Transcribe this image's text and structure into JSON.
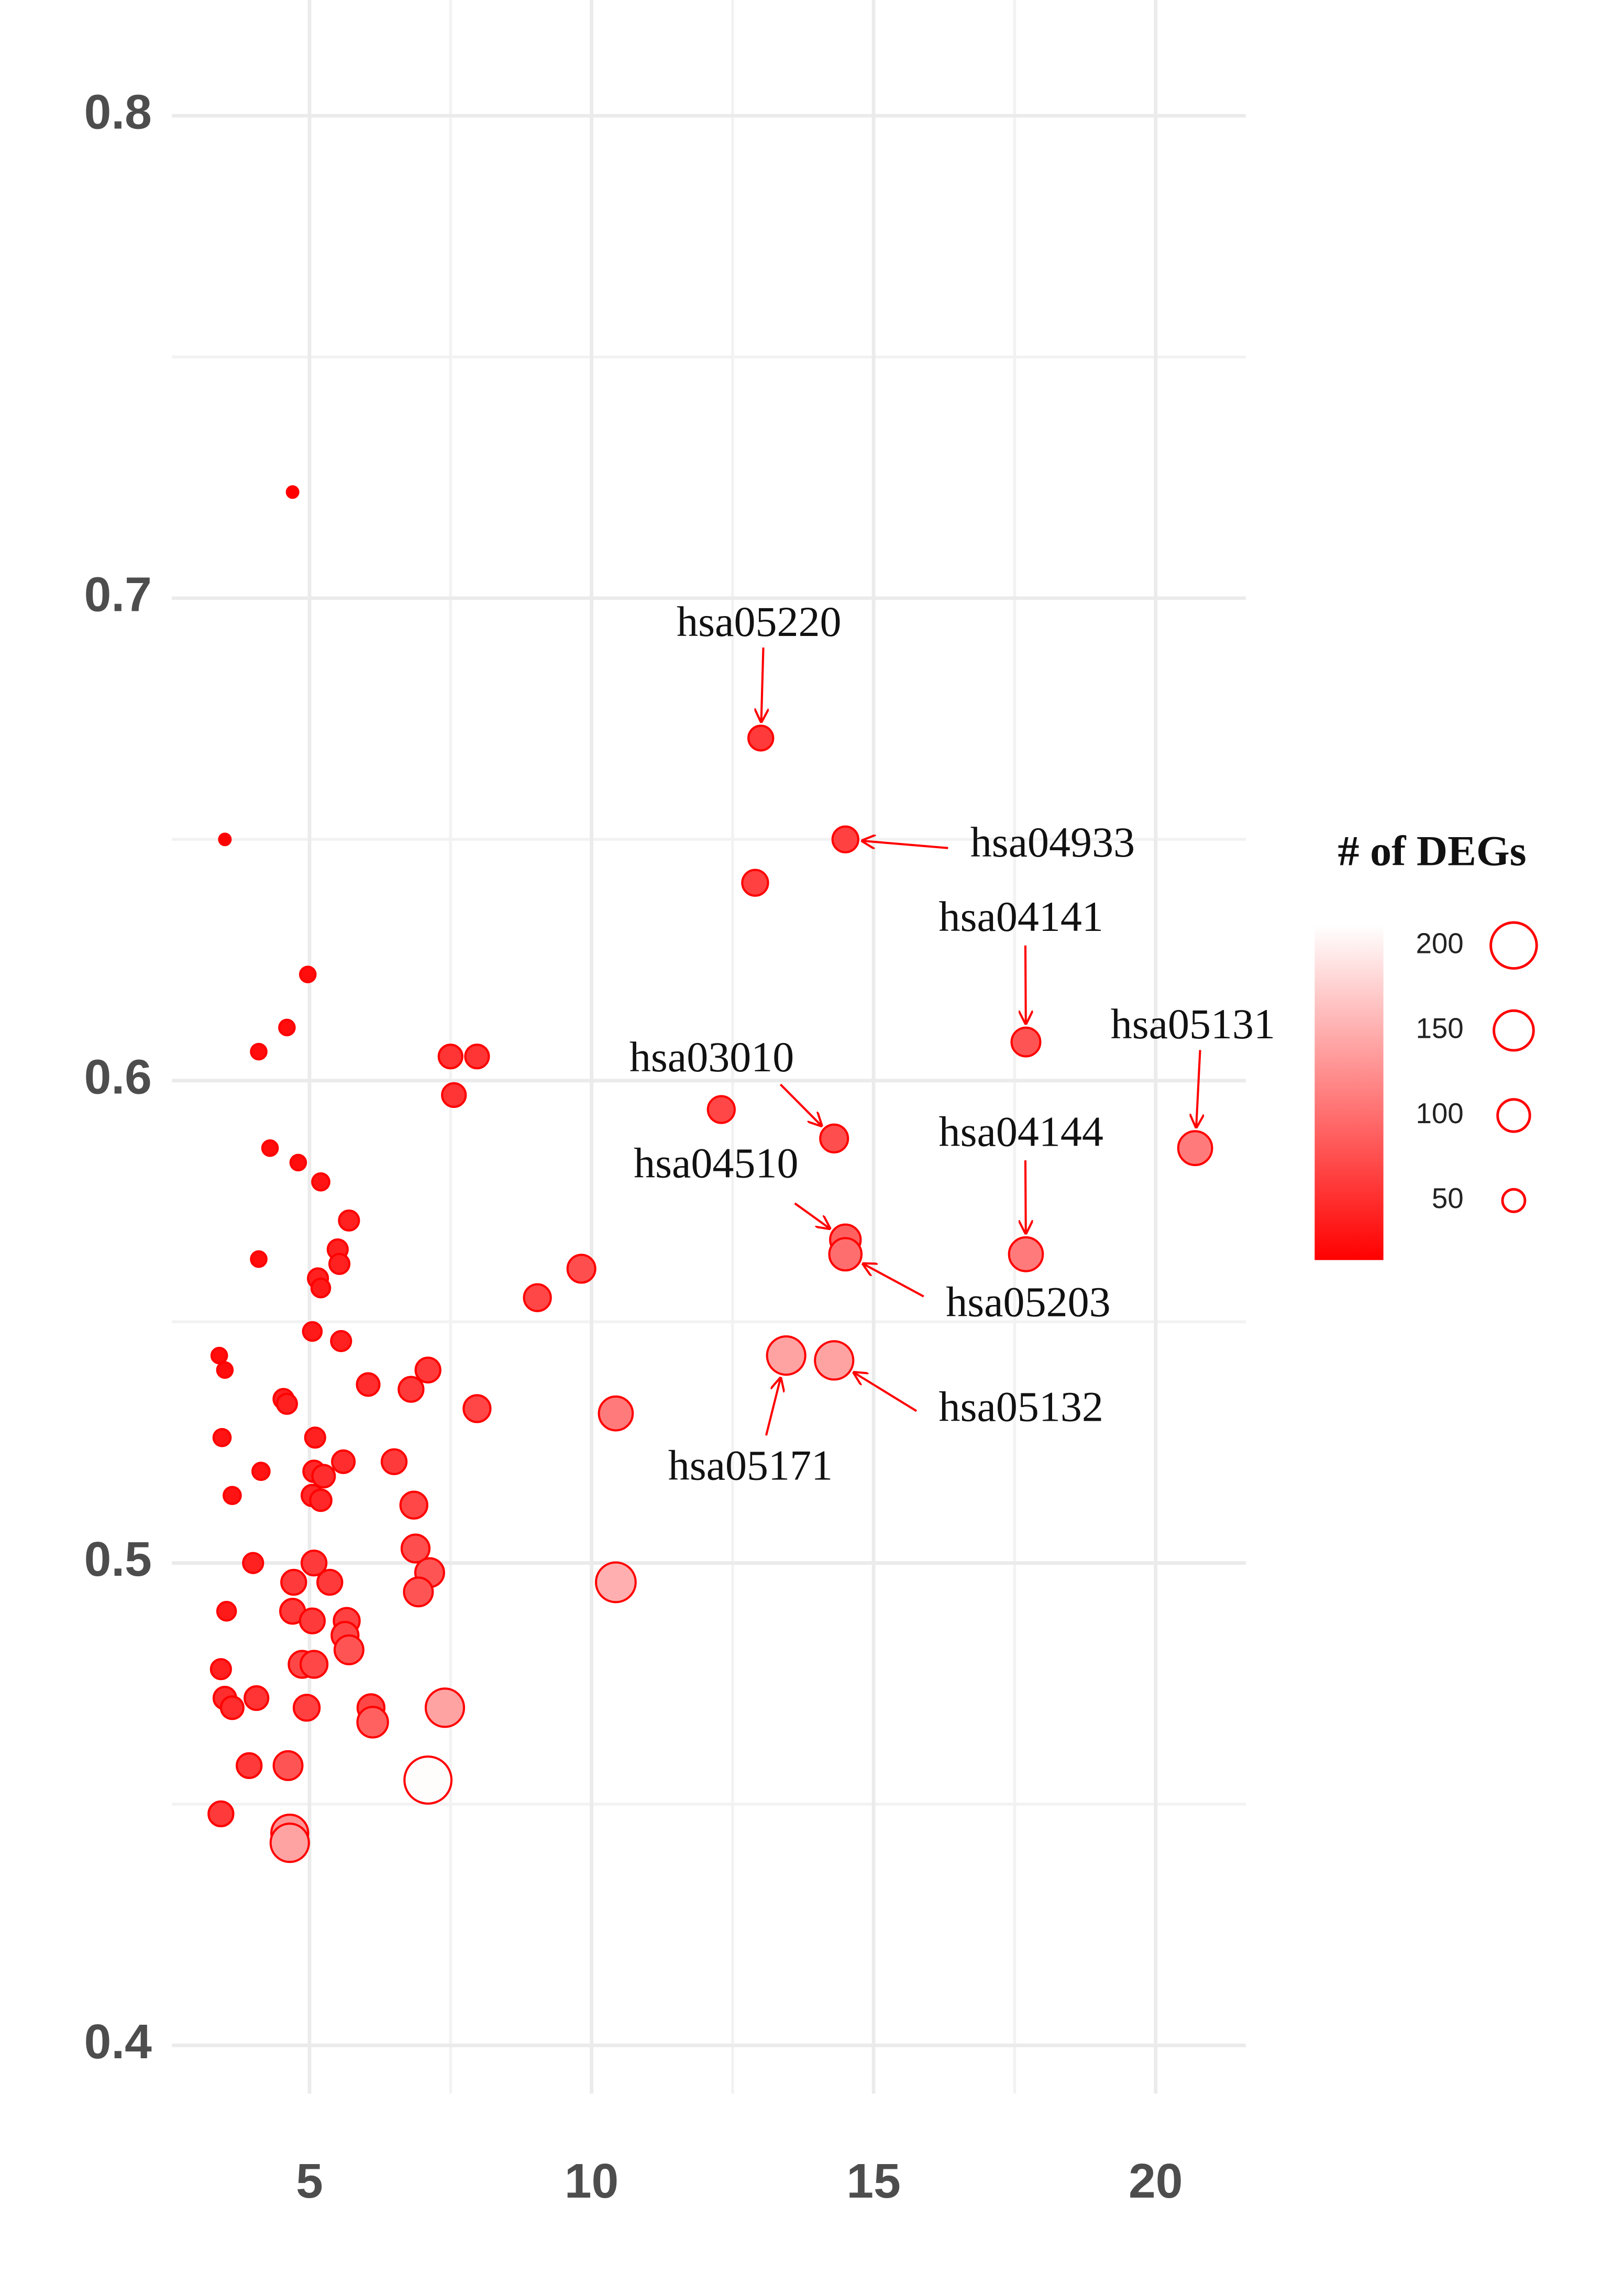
{
  "chart_data": {
    "type": "scatter",
    "x": [
      4.7,
      3.5,
      13.0,
      14.5,
      12.9,
      17.7,
      20.7,
      12.3,
      14.3,
      14.5,
      14.5,
      17.7,
      13.45,
      14.3,
      4.97,
      4.6,
      4.1,
      7.5,
      7.97,
      7.56,
      4.3,
      4.8,
      5.2,
      5.7,
      5.5,
      5.53,
      4.1,
      5.15,
      5.2,
      9.82,
      9.04,
      5.05,
      5.56,
      3.4,
      3.5,
      6.04,
      6.8,
      7.1,
      4.54,
      4.6,
      7.97,
      10.43,
      3.45,
      5.1,
      5.6,
      6.5,
      4.14,
      5.08,
      5.25,
      3.63,
      5.05,
      5.2,
      6.85,
      6.88,
      4.0,
      5.08,
      7.13,
      4.72,
      5.36,
      10.43,
      6.93,
      3.53,
      4.7,
      5.05,
      5.66,
      5.63,
      5.7,
      4.87,
      5.08,
      3.43,
      3.5,
      3.63,
      4.06,
      4.95,
      6.09,
      6.12,
      7.4,
      3.93,
      4.62,
      7.1,
      3.43,
      4.65,
      4.65
    ],
    "y": [
      0.722,
      0.65,
      0.671,
      0.65,
      0.641,
      0.608,
      0.586,
      0.594,
      0.588,
      0.567,
      0.564,
      0.564,
      0.543,
      0.542,
      0.622,
      0.611,
      0.606,
      0.605,
      0.605,
      0.597,
      0.586,
      0.583,
      0.579,
      0.571,
      0.565,
      0.562,
      0.563,
      0.559,
      0.557,
      0.561,
      0.555,
      0.548,
      0.546,
      0.543,
      0.54,
      0.537,
      0.536,
      0.54,
      0.534,
      0.533,
      0.532,
      0.531,
      0.526,
      0.526,
      0.521,
      0.521,
      0.519,
      0.519,
      0.518,
      0.514,
      0.514,
      0.513,
      0.512,
      0.503,
      0.5,
      0.5,
      0.498,
      0.496,
      0.496,
      0.496,
      0.494,
      0.49,
      0.49,
      0.488,
      0.488,
      0.485,
      0.482,
      0.479,
      0.479,
      0.478,
      0.472,
      0.47,
      0.472,
      0.47,
      0.47,
      0.467,
      0.47,
      0.458,
      0.458,
      0.455,
      0.448,
      0.444,
      0.442
    ],
    "size": [
      15,
      15,
      60,
      65,
      65,
      80,
      110,
      70,
      75,
      90,
      100,
      110,
      140,
      140,
      25,
      25,
      25,
      55,
      55,
      55,
      25,
      25,
      30,
      40,
      40,
      40,
      25,
      40,
      35,
      75,
      70,
      35,
      40,
      25,
      25,
      50,
      60,
      60,
      40,
      40,
      70,
      110,
      30,
      40,
      50,
      60,
      30,
      45,
      50,
      30,
      45,
      45,
      70,
      75,
      40,
      60,
      80,
      60,
      60,
      150,
      80,
      35,
      60,
      60,
      65,
      70,
      80,
      70,
      70,
      40,
      50,
      50,
      55,
      65,
      70,
      90,
      140,
      60,
      80,
      210,
      60,
      130,
      140
    ],
    "point_labels": [
      null,
      null,
      "hsa05220",
      "hsa04933",
      null,
      "hsa04141",
      "hsa05131",
      null,
      "hsa03010",
      "hsa04510",
      "hsa05203",
      "hsa04144",
      "hsa05171",
      "hsa05132",
      null,
      null,
      null,
      null,
      null,
      null,
      null,
      null,
      null,
      null,
      null,
      null,
      null,
      null,
      null,
      null,
      null,
      null,
      null,
      null,
      null,
      null,
      null,
      null,
      null,
      null,
      null,
      null,
      null,
      null,
      null,
      null,
      null,
      null,
      null,
      null,
      null,
      null,
      null,
      null,
      null,
      null,
      null,
      null,
      null,
      null,
      null,
      null,
      null,
      null,
      null,
      null,
      null,
      null,
      null,
      null,
      null,
      null,
      null,
      null,
      null,
      null,
      null,
      null,
      null,
      null,
      null,
      null,
      null
    ],
    "xlim": [
      2.56,
      21.6
    ],
    "xticks": [
      5,
      10,
      15,
      20
    ],
    "x_minor_grid": [
      7.5,
      12.5,
      17.5
    ],
    "ylim": [
      0.39,
      0.824
    ],
    "yticks": [
      0.4,
      0.5,
      0.6,
      0.7,
      0.8
    ],
    "y_minor_grid": [
      0.45,
      0.55,
      0.65,
      0.75
    ],
    "grid": true,
    "color": "#ff0000",
    "high_color": "#ffffff",
    "size_lim": [
      15,
      212
    ],
    "legend": {
      "title": "# of DEGs",
      "values": [
        50,
        100,
        150,
        200
      ]
    }
  }
}
